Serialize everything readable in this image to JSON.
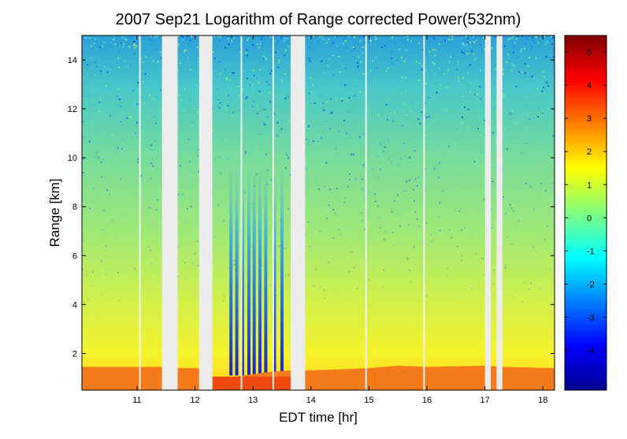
{
  "chart_data": {
    "type": "heatmap",
    "title": "2007 Sep21  Logarithm of Range corrected Power(532nm)",
    "xlabel": "EDT time [hr]",
    "ylabel": "Range [km]",
    "xlim": [
      10.05,
      18.2
    ],
    "ylim": [
      0.5,
      15
    ],
    "xticks": [
      11,
      12,
      13,
      14,
      15,
      16,
      17,
      18
    ],
    "yticks": [
      2,
      4,
      6,
      8,
      10,
      12,
      14
    ],
    "colorbar": {
      "colormap": "jet",
      "range": [
        -5.2,
        5.5
      ],
      "ticks": [
        -4,
        -3,
        -2,
        -1,
        0,
        1,
        2,
        3,
        4,
        5
      ]
    },
    "data_gaps_hr": [
      [
        11.43,
        11.7
      ],
      [
        12.07,
        12.3
      ],
      [
        13.65,
        13.9
      ],
      [
        17.0,
        17.1
      ],
      [
        17.2,
        17.3
      ]
    ],
    "thin_gaps_hr": [
      11.05,
      12.8,
      13.35,
      14.95,
      15.95
    ],
    "boundary_layer_top_km": [
      {
        "x": 10.05,
        "y": 1.45
      },
      {
        "x": 11.4,
        "y": 1.45
      },
      {
        "x": 11.7,
        "y": 1.4
      },
      {
        "x": 12.05,
        "y": 1.4
      },
      {
        "x": 12.3,
        "y": 1.0
      },
      {
        "x": 12.7,
        "y": 1.05
      },
      {
        "x": 13.0,
        "y": 1.15
      },
      {
        "x": 13.3,
        "y": 1.25
      },
      {
        "x": 13.6,
        "y": 1.3
      },
      {
        "x": 13.9,
        "y": 1.3
      },
      {
        "x": 14.5,
        "y": 1.35
      },
      {
        "x": 15.0,
        "y": 1.4
      },
      {
        "x": 15.5,
        "y": 1.5
      },
      {
        "x": 16.0,
        "y": 1.45
      },
      {
        "x": 17.0,
        "y": 1.5
      },
      {
        "x": 17.3,
        "y": 1.45
      },
      {
        "x": 18.2,
        "y": 1.4
      }
    ],
    "cloud_streaks_hr": [
      12.62,
      12.72,
      12.82,
      12.93,
      13.02,
      13.12,
      13.22,
      13.37,
      13.5
    ]
  }
}
